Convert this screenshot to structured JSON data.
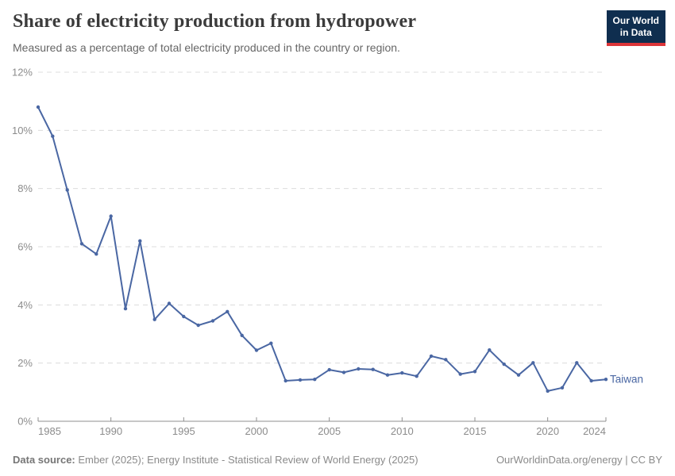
{
  "header": {
    "logo": {
      "line1": "Our World",
      "line2": "in Data"
    }
  },
  "footer": {
    "datasource_label": "Data source:",
    "datasource_text": " Ember (2025); Energy Institute - Statistical Review of World Energy (2025)",
    "credit": "OurWorldinData.org/energy | CC BY"
  },
  "colors": {
    "line": "#4a67a3",
    "grid": "#dcdcdc",
    "axis": "#8f8f8f",
    "tick_text": "#8c8c8c",
    "logo_bg": "#0f2e4f",
    "logo_red": "#dc3539"
  },
  "chart_data": {
    "type": "line",
    "title": "Share of electricity production from hydropower",
    "subtitle": "Measured as a percentage of total electricity produced in the country or region.",
    "x": [
      1985,
      1986,
      1987,
      1988,
      1989,
      1990,
      1991,
      1992,
      1993,
      1994,
      1995,
      1996,
      1997,
      1998,
      1999,
      2000,
      2001,
      2002,
      2003,
      2004,
      2005,
      2006,
      2007,
      2008,
      2009,
      2010,
      2011,
      2012,
      2013,
      2014,
      2015,
      2016,
      2017,
      2018,
      2019,
      2020,
      2021,
      2022,
      2023,
      2024
    ],
    "series": [
      {
        "name": "Taiwan",
        "color": "#4a67a3",
        "values": [
          10.8,
          9.8,
          7.95,
          6.1,
          5.75,
          7.05,
          3.87,
          6.2,
          3.5,
          4.05,
          3.6,
          3.3,
          3.45,
          3.77,
          2.95,
          2.44,
          2.68,
          1.39,
          1.42,
          1.44,
          1.77,
          1.68,
          1.8,
          1.78,
          1.59,
          1.66,
          1.55,
          2.24,
          2.12,
          1.62,
          1.71,
          2.45,
          1.96,
          1.59,
          2.01,
          1.04,
          1.15,
          2.01,
          1.39,
          1.44
        ]
      }
    ],
    "xlim": [
      1985,
      2024
    ],
    "ylim": [
      0,
      12
    ],
    "xticks": [
      1985,
      1990,
      1995,
      2000,
      2005,
      2010,
      2015,
      2020,
      2024
    ],
    "yticks": [
      0,
      2,
      4,
      6,
      8,
      10,
      12
    ],
    "ytick_suffix": "%",
    "grid": "horizontal-dashed",
    "legend": "line-end-label"
  }
}
